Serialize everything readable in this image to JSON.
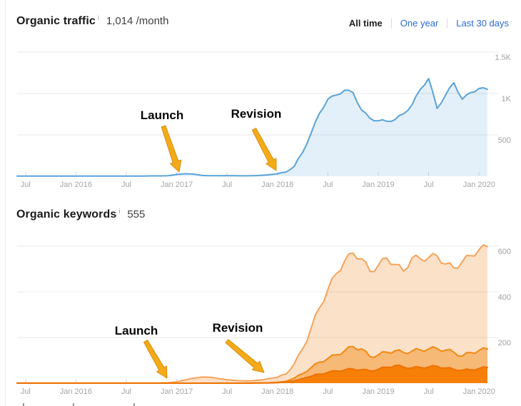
{
  "sections": [
    {
      "title": "Organic traffic",
      "info_icon": "i",
      "value": "1,014 /month"
    },
    {
      "title": "Organic keywords",
      "info_icon": "i",
      "value": "555"
    }
  ],
  "time_range_tabs": {
    "items": [
      {
        "label": "All time",
        "active": true
      },
      {
        "label": "One year",
        "active": false
      },
      {
        "label": "Last 30 days",
        "active": false
      }
    ],
    "link_color": "#2a6bd9",
    "active_color": "#222222"
  },
  "annotations": {
    "launch": "Launch",
    "revision": "Revision"
  },
  "colors": {
    "grid": "#e8e8e8",
    "axis_text": "#a5a5a5",
    "traffic_line": "#58a3db",
    "traffic_fill": "rgba(88,163,219,0.16)",
    "keywords_light_line": "#f6a35a",
    "keywords_light_fill": "rgba(246,163,90,0.33)",
    "keywords_mid_line": "#f18a12",
    "keywords_mid_fill": "rgba(241,138,18,0.45)",
    "keywords_dark_line": "#ee7100",
    "keywords_dark_fill": "rgba(246,123,2,0.95)",
    "arrow_fill": "#f3ab19",
    "arrow_stroke": "#d98d0a"
  },
  "chart_data": [
    {
      "type": "area",
      "title": "Organic traffic",
      "x_tick_labels": [
        "Jul",
        "Jan 2016",
        "Jul",
        "Jan 2017",
        "Jul",
        "Jan 2018",
        "Jul",
        "Jan 2019",
        "Jul",
        "Jan 2020"
      ],
      "x_tick_months": [
        1,
        7,
        13,
        19,
        25,
        31,
        37,
        43,
        49,
        55
      ],
      "x_range": [
        "Jun 2015",
        "Feb 2020"
      ],
      "y_ticks": [
        {
          "label": "1.5K",
          "value": 1500
        },
        {
          "label": "1K",
          "value": 1000
        },
        {
          "label": "500",
          "value": 500
        }
      ],
      "ylim": [
        0,
        1500
      ],
      "y_axis_position": "right",
      "grid": true,
      "legend_position": "none",
      "annotations": [
        {
          "label": "Launch",
          "points_at": "Jan 2017"
        },
        {
          "label": "Revision",
          "points_at": "Dec 2017"
        }
      ],
      "series": [
        {
          "name": "organic-traffic",
          "values": [
            3,
            3,
            3,
            3,
            3,
            3,
            3,
            3,
            3,
            3,
            3,
            3,
            3,
            3,
            3,
            3,
            4,
            4,
            6,
            22,
            30,
            26,
            10,
            6,
            6,
            8,
            6,
            5,
            6,
            10,
            18,
            30,
            50,
            120,
            290,
            520,
            760,
            930,
            980,
            1040,
            1010,
            800,
            700,
            670,
            665,
            685,
            755,
            860,
            1050,
            1180,
            820,
            980,
            1130,
            930,
            1010,
            1060,
            1050
          ]
        }
      ]
    },
    {
      "type": "area",
      "title": "Organic keywords",
      "x_tick_labels": [
        "Jul",
        "Jan 2016",
        "Jul",
        "Jan 2017",
        "Jul",
        "Jan 2018",
        "Jul",
        "Jan 2019",
        "Jul",
        "Jan 2020"
      ],
      "x_tick_months": [
        1,
        7,
        13,
        19,
        25,
        31,
        37,
        43,
        49,
        55
      ],
      "x_range": [
        "Jun 2015",
        "Feb 2020"
      ],
      "y_ticks": [
        {
          "label": "600",
          "value": 600
        },
        {
          "label": "400",
          "value": 400
        },
        {
          "label": "200",
          "value": 200
        }
      ],
      "ylim": [
        0,
        625
      ],
      "y_axis_position": "right",
      "grid": true,
      "legend_position": "none",
      "annotations": [
        {
          "label": "Launch",
          "points_at": "Jan 2017"
        },
        {
          "label": "Revision",
          "points_at": "Dec 2017"
        }
      ],
      "series": [
        {
          "name": "keywords-all",
          "values": [
            1,
            1,
            1,
            1,
            1,
            1,
            1,
            1,
            1,
            1,
            1,
            1,
            1,
            1,
            1,
            1,
            1,
            1,
            2,
            6,
            14,
            22,
            27,
            26,
            20,
            15,
            12,
            10,
            11,
            14,
            20,
            26,
            40,
            85,
            150,
            240,
            330,
            410,
            480,
            535,
            570,
            545,
            490,
            515,
            548,
            520,
            490,
            548,
            545,
            550,
            558,
            522,
            505,
            532,
            558,
            585,
            598
          ]
        },
        {
          "name": "keywords-mid-band",
          "values": [
            0,
            0,
            0,
            0,
            0,
            0,
            0,
            0,
            0,
            0,
            0,
            0,
            0,
            0,
            0,
            0,
            0,
            0,
            0,
            0,
            0,
            0,
            0,
            0,
            0,
            0,
            0,
            0,
            1,
            1,
            2,
            4,
            8,
            22,
            42,
            68,
            92,
            108,
            124,
            142,
            160,
            150,
            116,
            124,
            136,
            142,
            134,
            140,
            146,
            150,
            152,
            144,
            136,
            118,
            134,
            143,
            150
          ]
        },
        {
          "name": "keywords-top-band",
          "values": [
            0,
            0,
            0,
            0,
            0,
            0,
            0,
            0,
            0,
            0,
            0,
            0,
            0,
            0,
            0,
            0,
            0,
            0,
            0,
            0,
            0,
            0,
            0,
            0,
            0,
            0,
            0,
            0,
            0,
            1,
            1,
            2,
            5,
            10,
            20,
            30,
            40,
            47,
            54,
            58,
            62,
            59,
            54,
            61,
            70,
            77,
            71,
            67,
            69,
            71,
            74,
            67,
            61,
            57,
            59,
            64,
            69
          ]
        }
      ]
    }
  ]
}
